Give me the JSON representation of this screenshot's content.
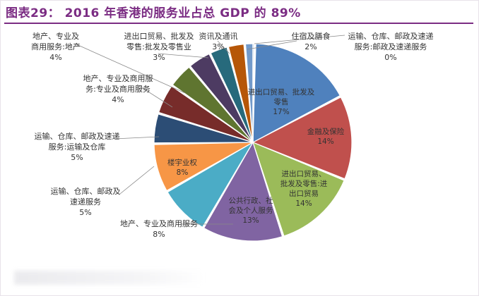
{
  "header": {
    "title": "图表29：  2016 年香港的服务业占总 GDP 的 89%"
  },
  "chart_data": {
    "type": "pie",
    "title": "图表29：  2016 年香港的服务业占总 GDP 的 89%",
    "slices": [
      {
        "label": "进出口贸易、批发及\n零售",
        "value": 17,
        "pct_text": "17%",
        "color": "#4f81bd"
      },
      {
        "label": "金融及保险",
        "value": 14,
        "pct_text": "14%",
        "color": "#c0504d"
      },
      {
        "label": "进出口贸易、\n批发及零售:进\n出口贸易",
        "value": 14,
        "pct_text": "14%",
        "color": "#9bbb59"
      },
      {
        "label": "公共行政、社\n会及个人服务",
        "value": 13,
        "pct_text": "13%",
        "color": "#8064a2"
      },
      {
        "label": "地产、专业及商用服务",
        "value": 8,
        "pct_text": "8%",
        "color": "#4bacc6"
      },
      {
        "label": "楼宇业权",
        "value": 8,
        "pct_text": "8%",
        "color": "#f79646"
      },
      {
        "label": "运输、仓库、邮政及\n速递服务",
        "value": 5,
        "pct_text": "5%",
        "color": "#2c4d75"
      },
      {
        "label": "运输、仓库、邮政及速递\n服务:运输及仓库",
        "value": 5,
        "pct_text": "5%",
        "color": "#772c2a"
      },
      {
        "label": "地产、专业及商用服\n务:专业及商用服务",
        "value": 4,
        "pct_text": "4%",
        "color": "#5f7530"
      },
      {
        "label": "地产、专业及\n商用服务:地产",
        "value": 4,
        "pct_text": "4%",
        "color": "#4d3b62"
      },
      {
        "label": "进出口贸易、批发及\n零售:批发及零售业",
        "value": 3,
        "pct_text": "3%",
        "color": "#276a7c"
      },
      {
        "label": "资讯及通讯",
        "value": 3,
        "pct_text": "3%",
        "color": "#b65708"
      },
      {
        "label": "住宿及膳食",
        "value": 2,
        "pct_text": "2%",
        "color": "#729aca"
      },
      {
        "label": "运输、仓库、邮政及速递\n服务:邮政及速递服务",
        "value": 0,
        "pct_text": "0%",
        "color": "#4f81bd"
      }
    ]
  }
}
